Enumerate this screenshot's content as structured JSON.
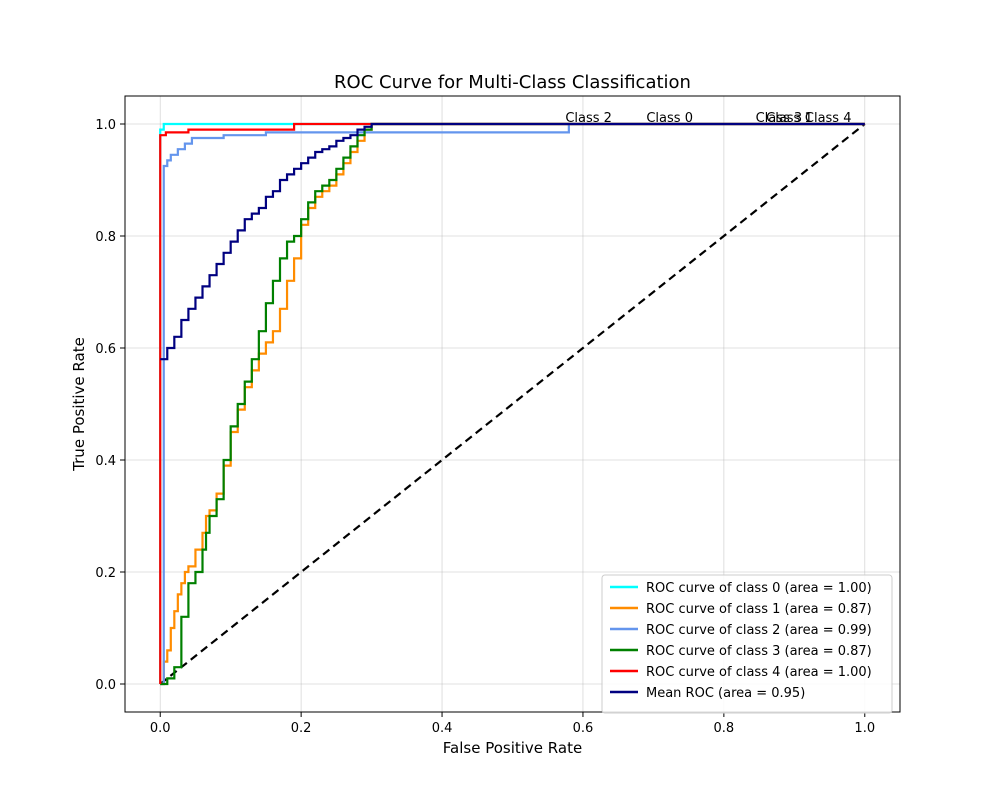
{
  "chart_data": {
    "type": "line",
    "title": "ROC Curve for Multi-Class Classification",
    "xlabel": "False Positive Rate",
    "ylabel": "True Positive Rate",
    "xlim": [
      -0.05,
      1.05
    ],
    "ylim": [
      -0.05,
      1.05
    ],
    "xticks": [
      "0.0",
      "0.2",
      "0.4",
      "0.6",
      "0.8",
      "1.0"
    ],
    "yticks": [
      "0.0",
      "0.2",
      "0.4",
      "0.6",
      "0.8",
      "1.0"
    ],
    "grid": true,
    "legend_position": "lower-right",
    "series": [
      {
        "name": "ROC curve of class 0 (area = 1.00)",
        "color": "#00ffff",
        "x": [
          0.0,
          0.0,
          0.005,
          0.19,
          0.19,
          1.0
        ],
        "y": [
          0.0,
          0.99,
          1.0,
          1.0,
          1.0,
          1.0
        ]
      },
      {
        "name": "ROC curve of class 1 (area = 0.87)",
        "color": "#ff8c00",
        "x": [
          0.0,
          0.005,
          0.01,
          0.015,
          0.02,
          0.025,
          0.03,
          0.035,
          0.04,
          0.05,
          0.06,
          0.065,
          0.07,
          0.08,
          0.09,
          0.1,
          0.11,
          0.12,
          0.13,
          0.14,
          0.15,
          0.16,
          0.17,
          0.18,
          0.19,
          0.2,
          0.21,
          0.22,
          0.23,
          0.24,
          0.25,
          0.26,
          0.27,
          0.28,
          0.29,
          0.3,
          1.0
        ],
        "y": [
          0.0,
          0.04,
          0.06,
          0.1,
          0.13,
          0.16,
          0.18,
          0.2,
          0.21,
          0.24,
          0.27,
          0.3,
          0.31,
          0.34,
          0.39,
          0.45,
          0.49,
          0.53,
          0.56,
          0.59,
          0.61,
          0.63,
          0.67,
          0.72,
          0.76,
          0.82,
          0.85,
          0.87,
          0.88,
          0.89,
          0.91,
          0.93,
          0.95,
          0.97,
          0.99,
          1.0,
          1.0
        ]
      },
      {
        "name": "ROC curve of class 2 (area = 0.99)",
        "color": "#6495ed",
        "x": [
          0.0,
          0.005,
          0.01,
          0.015,
          0.025,
          0.035,
          0.045,
          0.09,
          0.15,
          0.575,
          0.58,
          1.0
        ],
        "y": [
          0.0,
          0.925,
          0.935,
          0.945,
          0.955,
          0.965,
          0.975,
          0.98,
          0.985,
          0.985,
          1.0,
          1.0
        ]
      },
      {
        "name": "ROC curve of class 3 (area = 0.87)",
        "color": "#008000",
        "x": [
          0.0,
          0.01,
          0.02,
          0.03,
          0.04,
          0.05,
          0.06,
          0.065,
          0.07,
          0.08,
          0.09,
          0.1,
          0.11,
          0.12,
          0.13,
          0.14,
          0.15,
          0.16,
          0.17,
          0.18,
          0.19,
          0.2,
          0.21,
          0.22,
          0.23,
          0.24,
          0.25,
          0.26,
          0.27,
          0.28,
          0.29,
          0.3,
          1.0
        ],
        "y": [
          0.0,
          0.01,
          0.03,
          0.12,
          0.18,
          0.2,
          0.24,
          0.27,
          0.3,
          0.33,
          0.4,
          0.46,
          0.5,
          0.54,
          0.58,
          0.63,
          0.68,
          0.72,
          0.76,
          0.79,
          0.8,
          0.83,
          0.86,
          0.88,
          0.89,
          0.9,
          0.92,
          0.94,
          0.96,
          0.98,
          0.99,
          1.0,
          1.0
        ]
      },
      {
        "name": "ROC curve of class 4 (area = 1.00)",
        "color": "#ff0000",
        "x": [
          0.0,
          0.0,
          0.008,
          0.008,
          0.04,
          0.04,
          0.19,
          0.19,
          1.0
        ],
        "y": [
          0.0,
          0.98,
          0.98,
          0.985,
          0.985,
          0.99,
          0.99,
          1.0,
          1.0
        ]
      },
      {
        "name": "Mean ROC (area = 0.95)",
        "color": "#000080",
        "x": [
          0.0,
          0.01,
          0.02,
          0.03,
          0.04,
          0.05,
          0.06,
          0.07,
          0.08,
          0.09,
          0.1,
          0.11,
          0.12,
          0.13,
          0.14,
          0.15,
          0.16,
          0.17,
          0.18,
          0.19,
          0.2,
          0.21,
          0.22,
          0.23,
          0.24,
          0.25,
          0.26,
          0.27,
          0.28,
          0.29,
          0.3,
          1.0
        ],
        "y": [
          0.58,
          0.6,
          0.62,
          0.65,
          0.67,
          0.69,
          0.71,
          0.73,
          0.75,
          0.77,
          0.79,
          0.81,
          0.83,
          0.84,
          0.85,
          0.87,
          0.88,
          0.9,
          0.91,
          0.92,
          0.93,
          0.94,
          0.95,
          0.955,
          0.96,
          0.97,
          0.975,
          0.98,
          0.99,
          0.995,
          1.0,
          1.0
        ]
      }
    ],
    "diagonal": {
      "x": [
        0.0,
        1.0
      ],
      "y": [
        0.0,
        1.0
      ],
      "color": "#000000",
      "style": "dashed"
    },
    "annotations": [
      {
        "text": "Class 2",
        "x": 0.575,
        "y": 1.0
      },
      {
        "text": "Class 0",
        "x": 0.69,
        "y": 1.0
      },
      {
        "text": "Class 3",
        "x": 0.845,
        "y": 1.0
      },
      {
        "text": "Class 1",
        "x": 0.86,
        "y": 1.0
      },
      {
        "text": "Class 4",
        "x": 0.915,
        "y": 1.0
      }
    ]
  }
}
